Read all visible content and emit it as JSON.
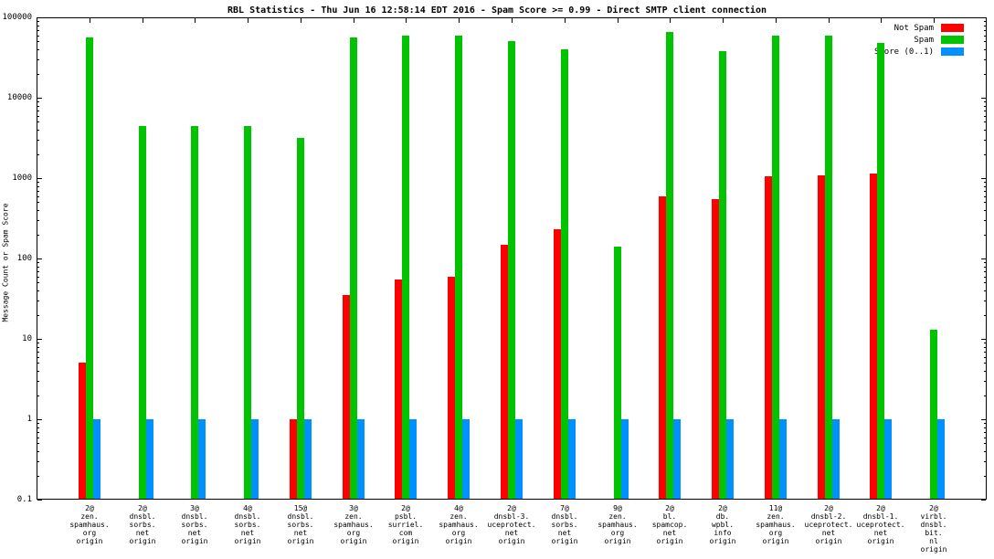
{
  "title": "RBL Statistics - Thu Jun 16 12:58:14 EDT 2016 - Spam Score >= 0.99 - Direct SMTP client connection",
  "ylabel": "Message Count or Spam Score",
  "chart_data": {
    "type": "bar",
    "yscale": "log",
    "ylim": [
      0.1,
      100000
    ],
    "ytick_labels": [
      "100000",
      "10000",
      "1000",
      "100",
      "10",
      "1",
      "0.1"
    ],
    "grid": false,
    "legend_position": "top-right",
    "categories": [
      [
        "2@",
        "zen.",
        "spamhaus.",
        "org",
        "origin"
      ],
      [
        "2@",
        "dnsbl.",
        "sorbs.",
        "net",
        "origin"
      ],
      [
        "3@",
        "dnsbl.",
        "sorbs.",
        "net",
        "origin"
      ],
      [
        "4@",
        "dnsbl.",
        "sorbs.",
        "net",
        "origin"
      ],
      [
        "15@",
        "dnsbl.",
        "sorbs.",
        "net",
        "origin"
      ],
      [
        "3@",
        "zen.",
        "spamhaus.",
        "org",
        "origin"
      ],
      [
        "2@",
        "psbl.",
        "surriel.",
        "com",
        "origin"
      ],
      [
        "4@",
        "zen.",
        "spamhaus.",
        "org",
        "origin"
      ],
      [
        "2@",
        "dnsbl-3.",
        "uceprotect.",
        "net",
        "origin"
      ],
      [
        "7@",
        "dnsbl.",
        "sorbs.",
        "net",
        "origin"
      ],
      [
        "9@",
        "zen.",
        "spamhaus.",
        "org",
        "origin"
      ],
      [
        "2@",
        "bl.",
        "spamcop.",
        "net",
        "origin"
      ],
      [
        "2@",
        "db.",
        "wpbl.",
        "info",
        "origin"
      ],
      [
        "11@",
        "zen.",
        "spamhaus.",
        "org",
        "origin"
      ],
      [
        "2@",
        "dnsbl-2.",
        "uceprotect.",
        "net",
        "origin"
      ],
      [
        "2@",
        "dnsbl-1.",
        "uceprotect.",
        "net",
        "origin"
      ],
      [
        "2@",
        "virbl.",
        "dnsbl.",
        "bit.",
        "nl",
        "origin"
      ]
    ],
    "series": [
      {
        "name": "Not Spam",
        "color": "#ff0000",
        "values": [
          5,
          null,
          null,
          null,
          1,
          35,
          55,
          60,
          150,
          230,
          null,
          600,
          550,
          1050,
          1080,
          1150,
          null
        ]
      },
      {
        "name": "Spam",
        "color": "#00c400",
        "values": [
          56000,
          4500,
          4500,
          4500,
          3200,
          56000,
          60000,
          60000,
          50000,
          40000,
          140,
          65000,
          38000,
          60000,
          60000,
          48000,
          13
        ]
      },
      {
        "name": "Score (0..1)",
        "color": "#0090ff",
        "values": [
          1,
          1,
          1,
          1,
          1,
          1,
          1,
          1,
          1,
          1,
          1,
          1,
          1,
          1,
          1,
          1,
          1
        ]
      }
    ]
  }
}
